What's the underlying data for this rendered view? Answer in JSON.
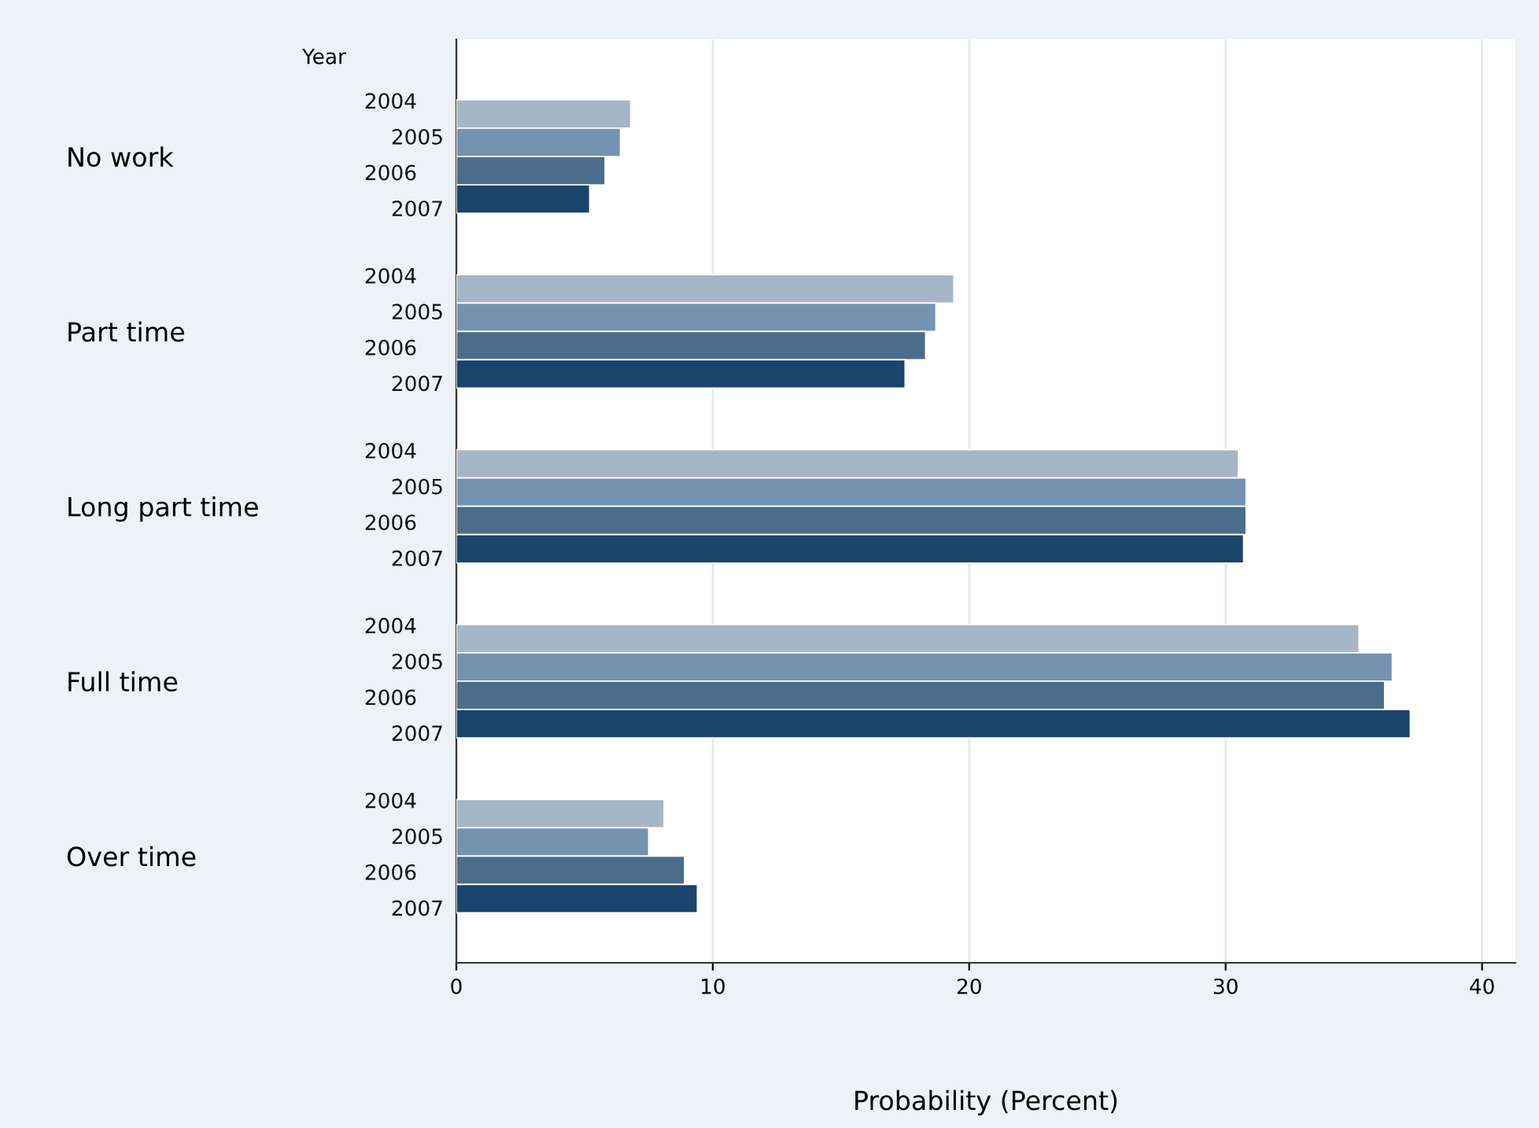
{
  "chart_data": {
    "type": "bar",
    "orientation": "horizontal",
    "categories": [
      "No work",
      "Part time",
      "Long part time",
      "Full time",
      "Over time"
    ],
    "legend_title": "Year",
    "xlabel": "Probability (Percent)",
    "xlim": [
      0,
      41.3
    ],
    "xticks": [
      0,
      10,
      20,
      30,
      40
    ],
    "grid": "x",
    "series": [
      {
        "name": "2004",
        "color": "#a5b6c7",
        "values": [
          6.8,
          19.4,
          30.5,
          35.2,
          8.1
        ]
      },
      {
        "name": "2005",
        "color": "#7393b0",
        "values": [
          6.4,
          18.7,
          30.8,
          36.5,
          7.5
        ]
      },
      {
        "name": "2006",
        "color": "#4a6d8c",
        "values": [
          5.8,
          18.3,
          30.8,
          36.2,
          8.9
        ]
      },
      {
        "name": "2007",
        "color": "#1a446c",
        "values": [
          5.2,
          17.5,
          30.7,
          37.2,
          9.4
        ]
      }
    ]
  }
}
